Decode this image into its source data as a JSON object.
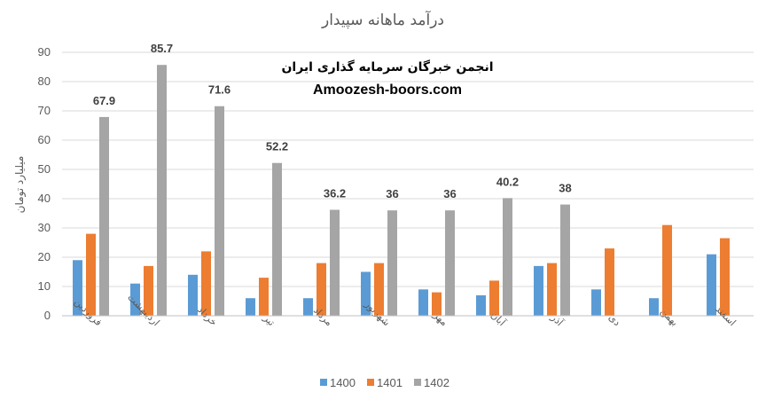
{
  "chart_data": {
    "type": "bar",
    "title": "درآمد ماهانه سپیدار",
    "ylabel": "میلیارد تومان",
    "ylim": [
      0,
      90
    ],
    "yticks": [
      0,
      10,
      20,
      30,
      40,
      50,
      60,
      70,
      80,
      90
    ],
    "grid": true,
    "legend_position": "bottom",
    "categories": [
      "فروردین",
      "اردیبهشت",
      "خرداد",
      "تیر",
      "مرداد",
      "شهریور",
      "مهر",
      "آبان",
      "آذر",
      "دی",
      "بهمن",
      "اسفند"
    ],
    "series": [
      {
        "name": "1400",
        "color": "#5b9bd5",
        "values": [
          19,
          11,
          14,
          6,
          6,
          15,
          9,
          7,
          17,
          9,
          6,
          21
        ]
      },
      {
        "name": "1401",
        "color": "#ed7d31",
        "values": [
          28,
          17,
          22,
          13,
          18,
          18,
          8,
          12,
          18,
          23,
          31,
          26.5
        ]
      },
      {
        "name": "1402",
        "color": "#a5a5a5",
        "values": [
          67.9,
          85.7,
          71.6,
          52.2,
          36.2,
          36,
          36,
          40.2,
          38,
          null,
          null,
          null
        ]
      }
    ],
    "data_labels": {
      "series": "1402",
      "labels": [
        "67.9",
        "85.7",
        "71.6",
        "52.2",
        "36.2",
        "36",
        "36",
        "40.2",
        "38"
      ]
    },
    "annotation": {
      "line1": "انجمن خبرگان سرمایه گذاری ایران",
      "line2": "Amoozesh-boors.com"
    }
  }
}
